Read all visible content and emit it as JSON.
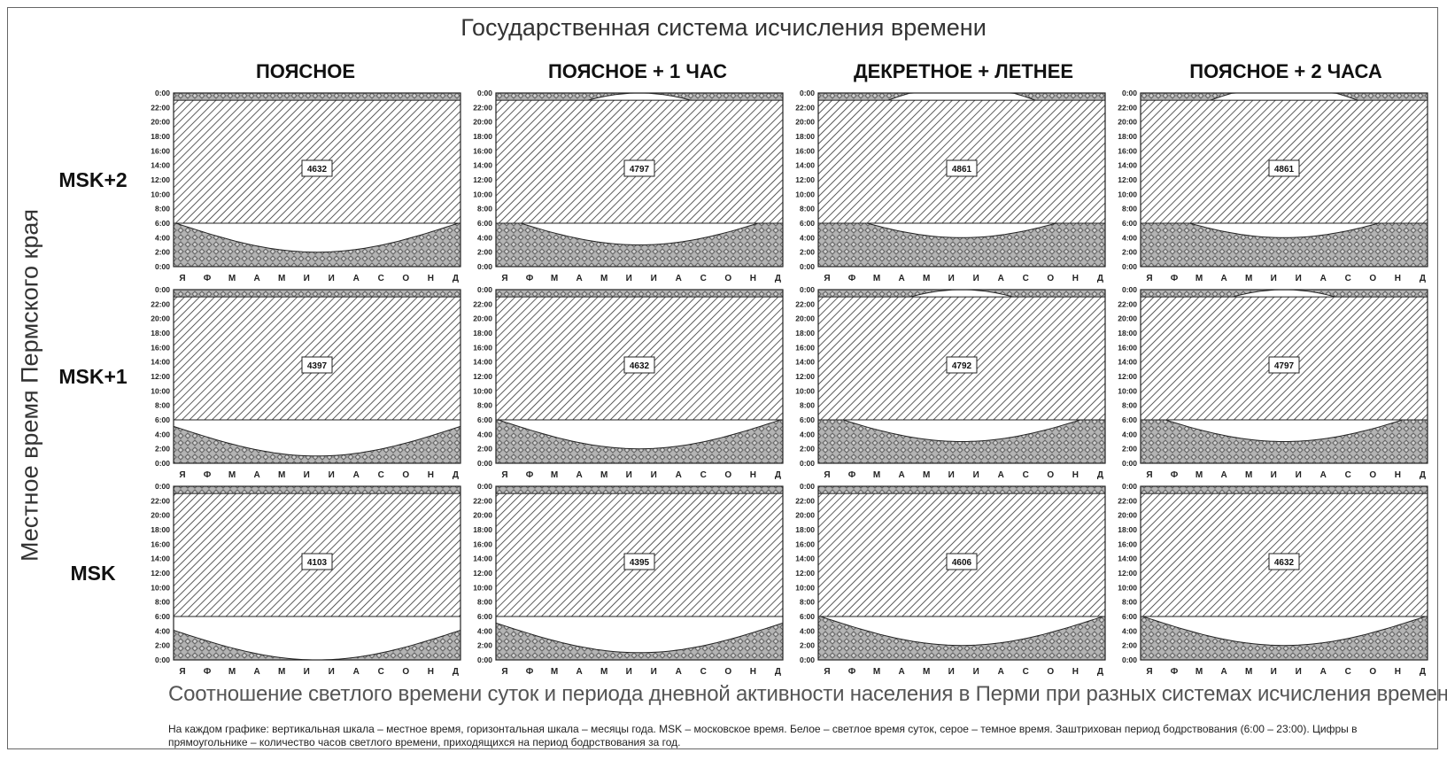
{
  "title": "Государственная система исчисления времени",
  "y_title": "Местное время Пермского края",
  "columns": [
    "ПОЯСНОЕ",
    "ПОЯСНОЕ + 1 ЧАС",
    "ДЕКРЕТНОЕ + ЛЕТНЕЕ",
    "ПОЯСНОЕ + 2 ЧАСА"
  ],
  "rows": [
    "MSK+2",
    "MSK+1",
    "MSK"
  ],
  "subtitle": "Соотношение светлого времени суток и периода дневной активности населения в Перми при разных системах исчисления времени",
  "caption": "На каждом графике: вертикальная шкала – местное время, горизонтальная шкала – месяцы года. MSK – московское время. Белое – светлое время суток, серое – темное время. Заштрихован период бодрствования (6:00 – 23:00). Цифры в прямоугольнике – количество часов светлого времени, приходящихся на период бодрствования за год.",
  "chart_data": {
    "type": "area",
    "y_ticks": [
      "0:00",
      "2:00",
      "4:00",
      "6:00",
      "8:00",
      "10:00",
      "12:00",
      "14:00",
      "16:00",
      "18:00",
      "20:00",
      "22:00",
      "0:00"
    ],
    "x_categories": [
      "Я",
      "Ф",
      "М",
      "А",
      "М",
      "И",
      "И",
      "А",
      "С",
      "О",
      "Н",
      "Д"
    ],
    "ylim": [
      0,
      24
    ],
    "wake_period": [
      6,
      23
    ],
    "panels": [
      {
        "row": "MSK+2",
        "column": "ПОЯСНОЕ",
        "value": 4632,
        "sunrise_min": 2.0,
        "sunset_max": 23.0
      },
      {
        "row": "MSK+2",
        "column": "ПОЯСНОЕ + 1 ЧАС",
        "value": 4797,
        "sunrise_min": 3.0,
        "sunset_max": 24.0
      },
      {
        "row": "MSK+2",
        "column": "ДЕКРЕТНОЕ + ЛЕТНЕЕ",
        "value": 4861,
        "sunrise_min": 4.0,
        "sunset_max": 25.0
      },
      {
        "row": "MSK+2",
        "column": "ПОЯСНОЕ + 2 ЧАСА",
        "value": 4861,
        "sunrise_min": 4.0,
        "sunset_max": 25.0
      },
      {
        "row": "MSK+1",
        "column": "ПОЯСНОЕ",
        "value": 4397,
        "sunrise_min": 1.0,
        "sunset_max": 22.0
      },
      {
        "row": "MSK+1",
        "column": "ПОЯСНОЕ + 1 ЧАС",
        "value": 4632,
        "sunrise_min": 2.0,
        "sunset_max": 23.0
      },
      {
        "row": "MSK+1",
        "column": "ДЕКРЕТНОЕ + ЛЕТНЕЕ",
        "value": 4792,
        "sunrise_min": 3.0,
        "sunset_max": 24.0
      },
      {
        "row": "MSK+1",
        "column": "ПОЯСНОЕ + 2 ЧАСА",
        "value": 4797,
        "sunrise_min": 3.0,
        "sunset_max": 24.0
      },
      {
        "row": "MSK",
        "column": "ПОЯСНОЕ",
        "value": 4103,
        "sunrise_min": 0.0,
        "sunset_max": 21.0
      },
      {
        "row": "MSK",
        "column": "ПОЯСНОЕ + 1 ЧАС",
        "value": 4395,
        "sunrise_min": 1.0,
        "sunset_max": 22.0
      },
      {
        "row": "MSK",
        "column": "ДЕКРЕТНОЕ + ЛЕТНЕЕ",
        "value": 4606,
        "sunrise_min": 2.0,
        "sunset_max": 23.0
      },
      {
        "row": "MSK",
        "column": "ПОЯСНОЕ + 2 ЧАСА",
        "value": 4632,
        "sunrise_min": 2.0,
        "sunset_max": 23.0
      }
    ]
  }
}
